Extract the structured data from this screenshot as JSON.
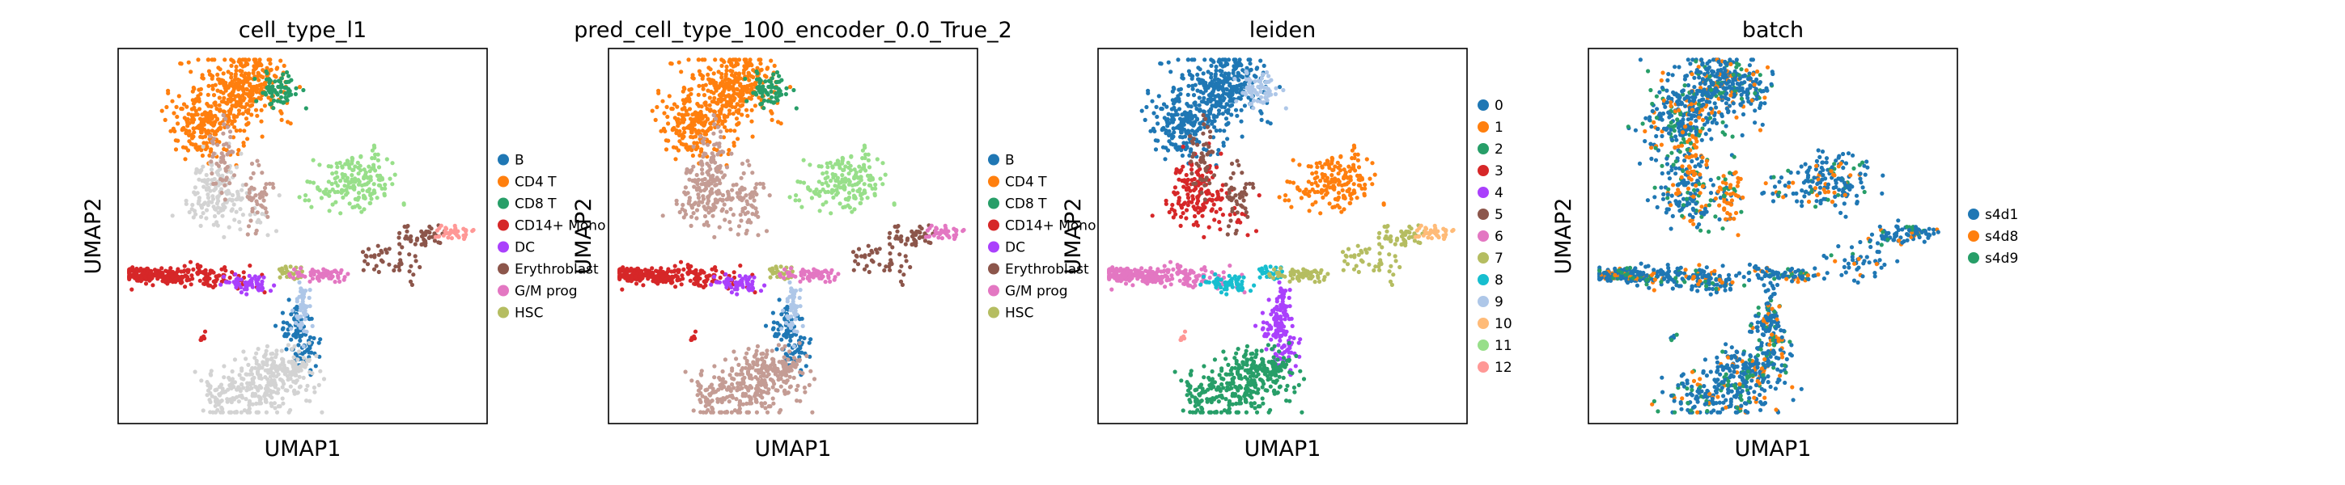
{
  "chart_data": [
    {
      "type": "scatter",
      "title": "cell_type_l1",
      "xlabel": "UMAP1",
      "ylabel": "UMAP2",
      "grid": false,
      "legend_position": "right",
      "legend": [
        {
          "label": "B",
          "color": "#1f77b4"
        },
        {
          "label": "CD4 T",
          "color": "#ff7f0e"
        },
        {
          "label": "CD8 T",
          "color": "#279e68"
        },
        {
          "label": "CD14+ Mono",
          "color": "#d62728"
        },
        {
          "label": "DC",
          "color": "#aa40fc"
        },
        {
          "label": "Erythroblast",
          "color": "#8c564b"
        },
        {
          "label": "G/M prog",
          "color": "#e377c2"
        },
        {
          "label": "HSC",
          "color": "#b5bd61"
        }
      ],
      "unlabeled_color": "#d3d3d3"
    },
    {
      "type": "scatter",
      "title": "pred_cell_type_100_encoder_0.0_True_2",
      "xlabel": "UMAP1",
      "ylabel": "UMAP2",
      "grid": false,
      "legend_position": "right",
      "legend": [
        {
          "label": "B",
          "color": "#1f77b4"
        },
        {
          "label": "CD4 T",
          "color": "#ff7f0e"
        },
        {
          "label": "CD8 T",
          "color": "#279e68"
        },
        {
          "label": "CD14+ Mono",
          "color": "#d62728"
        },
        {
          "label": "DC",
          "color": "#aa40fc"
        },
        {
          "label": "Erythroblast",
          "color": "#8c564b"
        },
        {
          "label": "G/M prog",
          "color": "#e377c2"
        },
        {
          "label": "HSC",
          "color": "#b5bd61"
        }
      ],
      "unlabeled_color": "#c49c94"
    },
    {
      "type": "scatter",
      "title": "leiden",
      "xlabel": "UMAP1",
      "ylabel": "UMAP2",
      "grid": false,
      "legend_position": "right",
      "legend": [
        {
          "label": "0",
          "color": "#1f77b4"
        },
        {
          "label": "1",
          "color": "#ff7f0e"
        },
        {
          "label": "2",
          "color": "#279e68"
        },
        {
          "label": "3",
          "color": "#d62728"
        },
        {
          "label": "4",
          "color": "#aa40fc"
        },
        {
          "label": "5",
          "color": "#8c564b"
        },
        {
          "label": "6",
          "color": "#e377c2"
        },
        {
          "label": "7",
          "color": "#b5bd61"
        },
        {
          "label": "8",
          "color": "#17becf"
        },
        {
          "label": "9",
          "color": "#aec7e8"
        },
        {
          "label": "10",
          "color": "#ffbb78"
        },
        {
          "label": "11",
          "color": "#98df8a"
        },
        {
          "label": "12",
          "color": "#ff9896"
        }
      ]
    },
    {
      "type": "scatter",
      "title": "batch",
      "xlabel": "UMAP1",
      "ylabel": "UMAP2",
      "grid": false,
      "legend_position": "right",
      "legend": [
        {
          "label": "s4d1",
          "color": "#1f77b4"
        },
        {
          "label": "s4d8",
          "color": "#ff7f0e"
        },
        {
          "label": "s4d9",
          "color": "#279e68"
        }
      ]
    }
  ]
}
